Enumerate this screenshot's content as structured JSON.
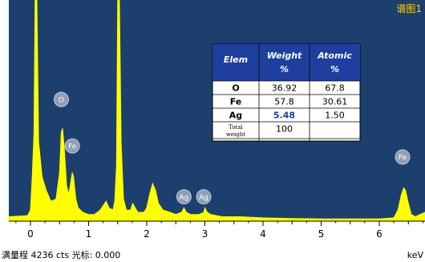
{
  "chart_data": {
    "type": "line",
    "title": "谱图1",
    "xlabel": "keV",
    "xlim": [
      -0.4,
      6.8
    ],
    "x_ticks": [
      0,
      1,
      2,
      3,
      4,
      5,
      6
    ],
    "tick_labels": [
      "0",
      "1",
      "2",
      "3",
      "4",
      "5",
      "6"
    ],
    "y_full_scale_cts": 4236,
    "grid": false,
    "colors": {
      "background": "#1c3f6e",
      "spectrum": "#ffff00",
      "title": "#ffd400",
      "badge": "#8f9eb6",
      "table_header": "#1f3f9e"
    },
    "series": [
      {
        "points": [
          [
            -0.4,
            0.02
          ],
          [
            -0.05,
            0.025
          ],
          [
            0.0,
            0.05
          ],
          [
            0.03,
            0.2
          ],
          [
            0.06,
            0.4
          ],
          [
            0.08,
            1.0
          ],
          [
            0.11,
            1.0
          ],
          [
            0.14,
            0.36
          ],
          [
            0.2,
            0.2
          ],
          [
            0.27,
            0.14
          ],
          [
            0.35,
            0.09
          ],
          [
            0.44,
            0.1
          ],
          [
            0.5,
            0.22
          ],
          [
            0.53,
            0.4
          ],
          [
            0.55,
            0.42
          ],
          [
            0.58,
            0.34
          ],
          [
            0.62,
            0.16
          ],
          [
            0.66,
            0.12
          ],
          [
            0.7,
            0.19
          ],
          [
            0.72,
            0.22
          ],
          [
            0.74,
            0.2
          ],
          [
            0.78,
            0.1
          ],
          [
            0.82,
            0.06
          ],
          [
            0.9,
            0.04
          ],
          [
            1.0,
            0.03
          ],
          [
            1.1,
            0.03
          ],
          [
            1.2,
            0.05
          ],
          [
            1.3,
            0.09
          ],
          [
            1.35,
            0.06
          ],
          [
            1.42,
            0.05
          ],
          [
            1.45,
            0.09
          ],
          [
            1.48,
            0.25
          ],
          [
            1.5,
            1.0
          ],
          [
            1.53,
            1.0
          ],
          [
            1.56,
            0.35
          ],
          [
            1.6,
            0.1
          ],
          [
            1.65,
            0.05
          ],
          [
            1.72,
            0.05
          ],
          [
            1.76,
            0.08
          ],
          [
            1.8,
            0.06
          ],
          [
            1.85,
            0.04
          ],
          [
            1.95,
            0.04
          ],
          [
            2.0,
            0.06
          ],
          [
            2.05,
            0.12
          ],
          [
            2.1,
            0.17
          ],
          [
            2.15,
            0.14
          ],
          [
            2.2,
            0.08
          ],
          [
            2.28,
            0.05
          ],
          [
            2.4,
            0.04
          ],
          [
            2.5,
            0.03
          ],
          [
            2.6,
            0.04
          ],
          [
            2.64,
            0.06
          ],
          [
            2.68,
            0.04
          ],
          [
            2.75,
            0.03
          ],
          [
            2.84,
            0.03
          ],
          [
            2.9,
            0.03
          ],
          [
            2.98,
            0.04
          ],
          [
            3.0,
            0.06
          ],
          [
            3.04,
            0.04
          ],
          [
            3.1,
            0.03
          ],
          [
            3.3,
            0.02
          ],
          [
            3.6,
            0.02
          ],
          [
            4.0,
            0.015
          ],
          [
            4.5,
            0.012
          ],
          [
            5.0,
            0.01
          ],
          [
            5.5,
            0.01
          ],
          [
            6.0,
            0.01
          ],
          [
            6.25,
            0.015
          ],
          [
            6.32,
            0.05
          ],
          [
            6.38,
            0.12
          ],
          [
            6.42,
            0.15
          ],
          [
            6.45,
            0.14
          ],
          [
            6.5,
            0.08
          ],
          [
            6.55,
            0.03
          ],
          [
            6.62,
            0.02
          ],
          [
            6.7,
            0.03
          ],
          [
            6.8,
            0.04
          ]
        ]
      }
    ],
    "peak_labels": [
      {
        "element": "O",
        "x": 0.53,
        "badge_y": 0.55
      },
      {
        "element": "Fe",
        "x": 0.72,
        "badge_y": 0.34
      },
      {
        "element": "Ag",
        "x": 2.64,
        "badge_y": 0.11
      },
      {
        "element": "Ag",
        "x": 2.98,
        "badge_y": 0.11
      },
      {
        "element": "Fe",
        "x": 6.4,
        "badge_y": 0.29
      }
    ],
    "table": {
      "headers": [
        [
          "Elem"
        ],
        [
          "Weight",
          "%"
        ],
        [
          "Atomic",
          "%"
        ]
      ],
      "rows": [
        {
          "elem": "O",
          "weight": "36.92",
          "atomic": "67.8",
          "weight_color": "#000000"
        },
        {
          "elem": "Fe",
          "weight": "57.8",
          "atomic": "30.61",
          "weight_color": "#000000"
        },
        {
          "elem": "Ag",
          "weight": "5.48",
          "atomic": "1.50",
          "weight_color": "#1f3f9e"
        },
        {
          "elem": [
            "Total",
            "weight"
          ],
          "weight": "100",
          "atomic": "",
          "weight_color": "#000000"
        }
      ]
    }
  },
  "footer": {
    "scale_text": "满量程 4236 cts 光标: 0.000",
    "unit_label": "keV"
  }
}
